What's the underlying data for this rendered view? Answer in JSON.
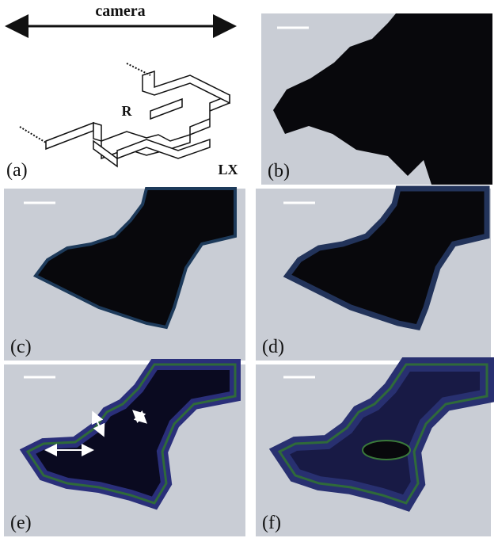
{
  "panel_a": {
    "arrow_label": "camera",
    "region_labels": [
      "R",
      "LX"
    ]
  },
  "panels": [
    "(a)",
    "(b)",
    "(c)",
    "(d)",
    "(e)",
    "(f)"
  ]
}
